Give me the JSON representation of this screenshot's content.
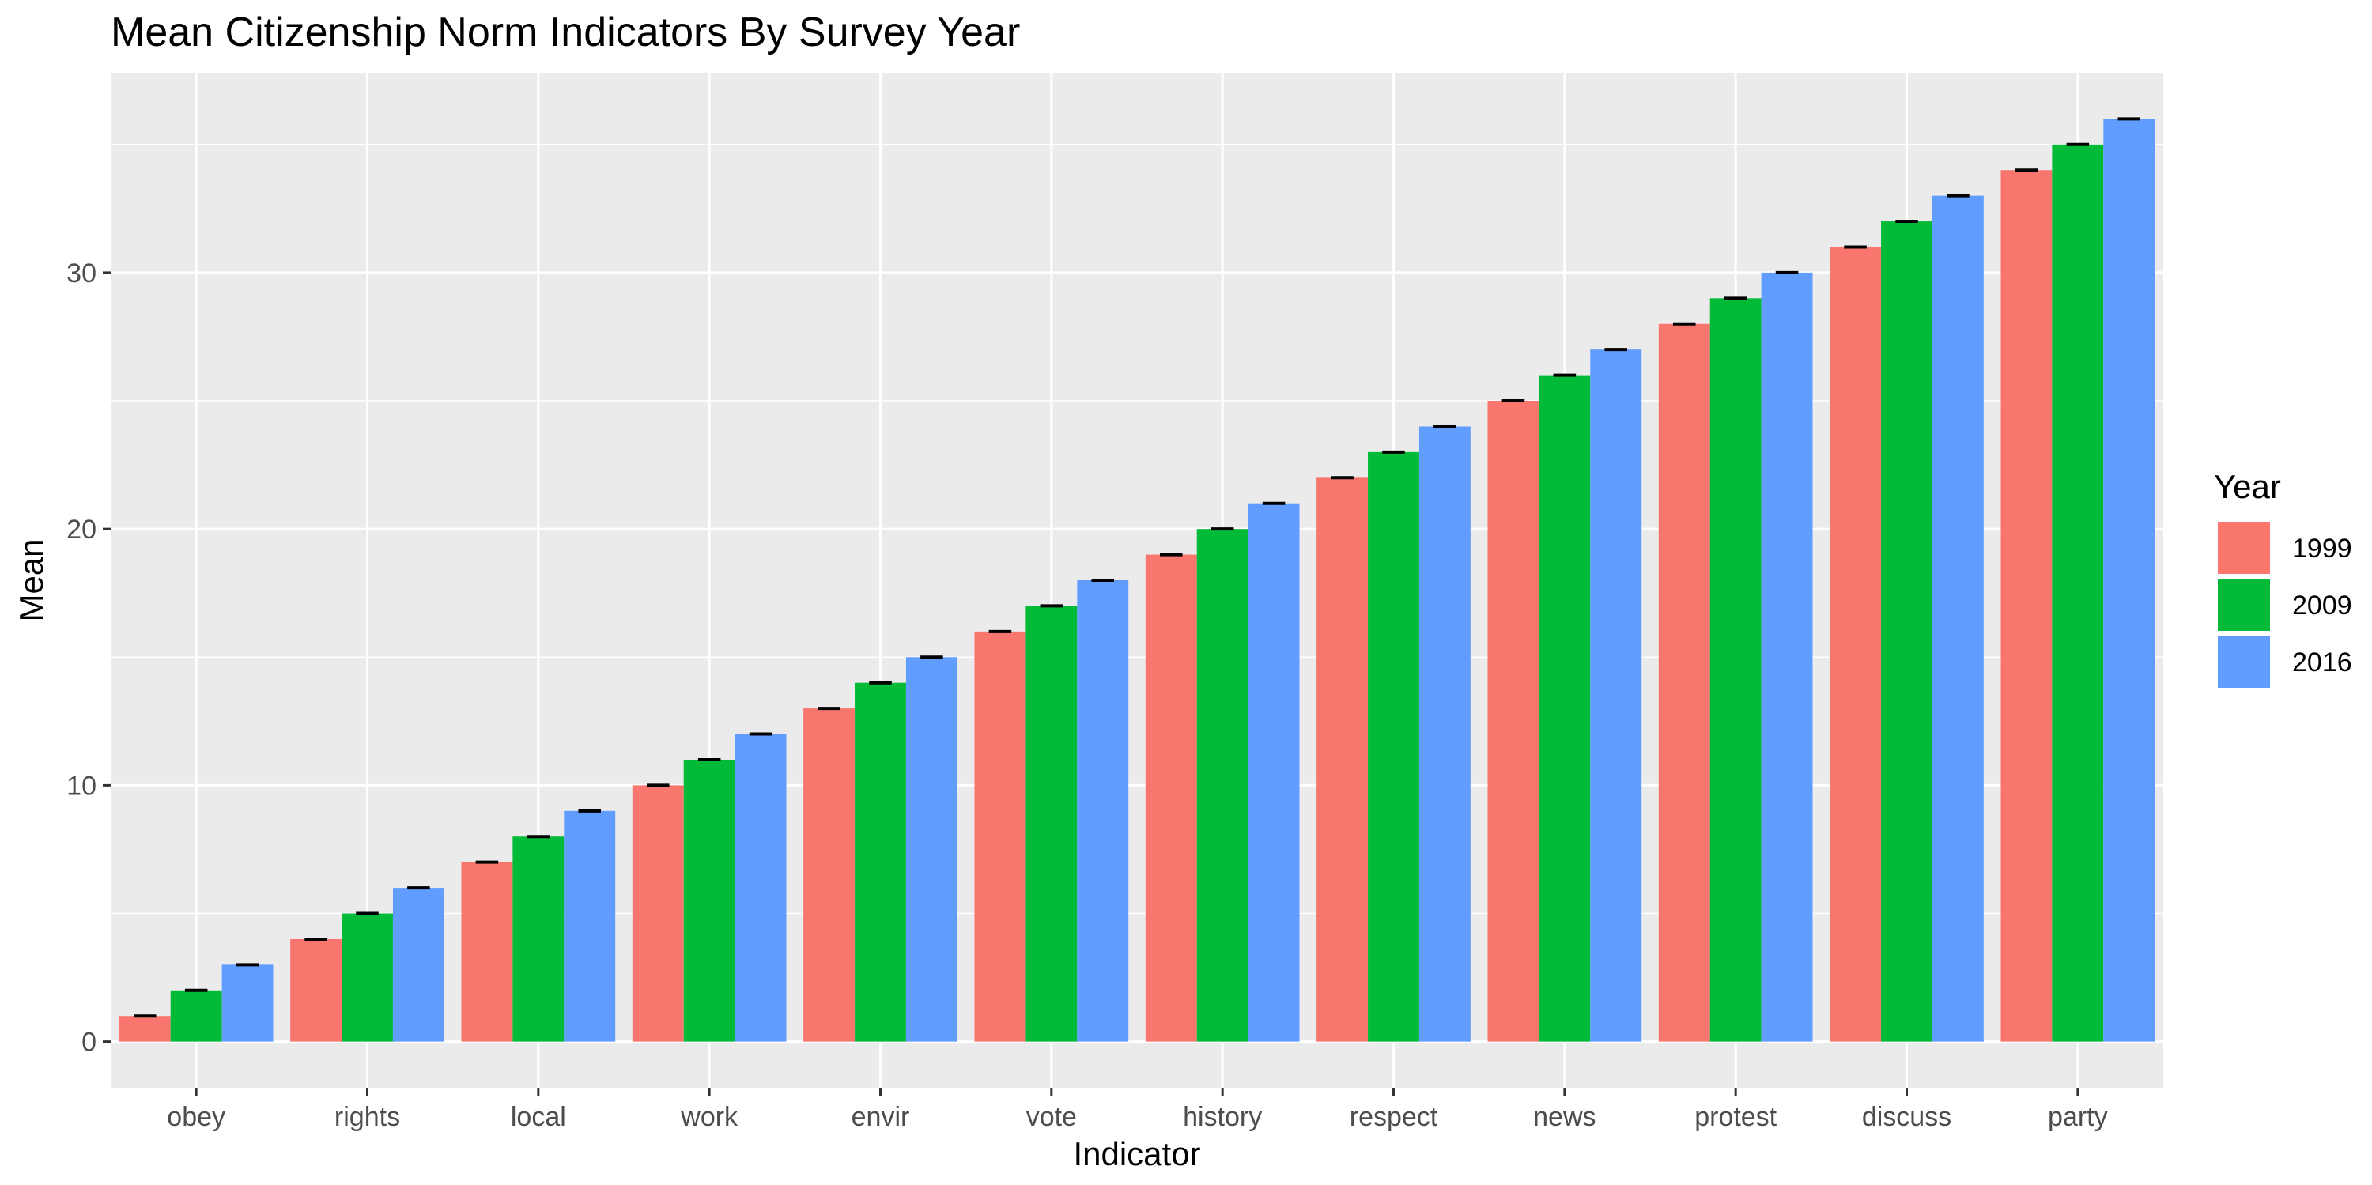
{
  "chart_data": {
    "type": "bar",
    "title": "Mean Citizenship Norm Indicators By Survey Year",
    "xlabel": "Indicator",
    "ylabel": "Mean",
    "categories": [
      "obey",
      "rights",
      "local",
      "work",
      "envir",
      "vote",
      "history",
      "respect",
      "news",
      "protest",
      "discuss",
      "party"
    ],
    "series": [
      {
        "name": "1999",
        "color": "#F8766D",
        "values": [
          1,
          4,
          7,
          10,
          13,
          16,
          19,
          22,
          25,
          28,
          31,
          34
        ]
      },
      {
        "name": "2009",
        "color": "#00BA38",
        "values": [
          2,
          5,
          8,
          11,
          14,
          17,
          20,
          23,
          26,
          29,
          32,
          35
        ]
      },
      {
        "name": "2016",
        "color": "#619CFF",
        "values": [
          3,
          6,
          9,
          12,
          15,
          18,
          21,
          24,
          27,
          30,
          33,
          36
        ]
      }
    ],
    "error_bars": true,
    "y_ticks": [
      0,
      10,
      20,
      30
    ],
    "ylim": [
      -1.8,
      37.8
    ],
    "grid": true,
    "legend": {
      "title": "Year",
      "position": "right"
    },
    "panel_background": "#EBEBEB",
    "grid_color": "#FFFFFF"
  }
}
